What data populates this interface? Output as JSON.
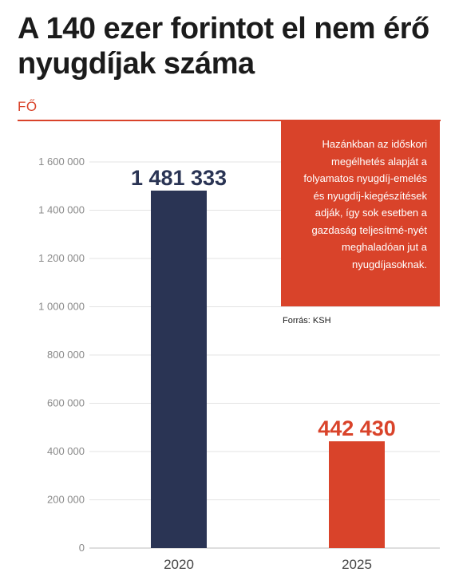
{
  "title": "A 140 ezer forintot el nem érő nyugdíjak száma",
  "unit_label": "FŐ",
  "note": "Hazánkban az időskori megélhetés alapját a folyamatos nyugdíj-emelés és nyugdíj-kiegészítések adják, így sok esetben a gazdaság teljesítmé-nyét meghaladóan jut a nyugdíjasoknak.",
  "source": "Forrás: KSH",
  "colors": {
    "accent": "#d9432a",
    "bar_2020": "#2a3454",
    "bar_2025": "#d9432a"
  },
  "chart_data": {
    "type": "bar",
    "categories": [
      "2020",
      "2025"
    ],
    "values": [
      1481333,
      442430
    ],
    "data_labels": [
      "1 481 333",
      "442 430"
    ],
    "ylim": [
      0,
      1600000
    ],
    "yticks": [
      0,
      200000,
      400000,
      600000,
      800000,
      1000000,
      1200000,
      1400000,
      1600000
    ],
    "ytick_labels": [
      "0",
      "200 000",
      "400 000",
      "600 000",
      "800 000",
      "1 000 000",
      "1 200 000",
      "1 400 000",
      "1 600 000"
    ],
    "grid": true,
    "xlabel": "",
    "ylabel": "FŐ"
  }
}
